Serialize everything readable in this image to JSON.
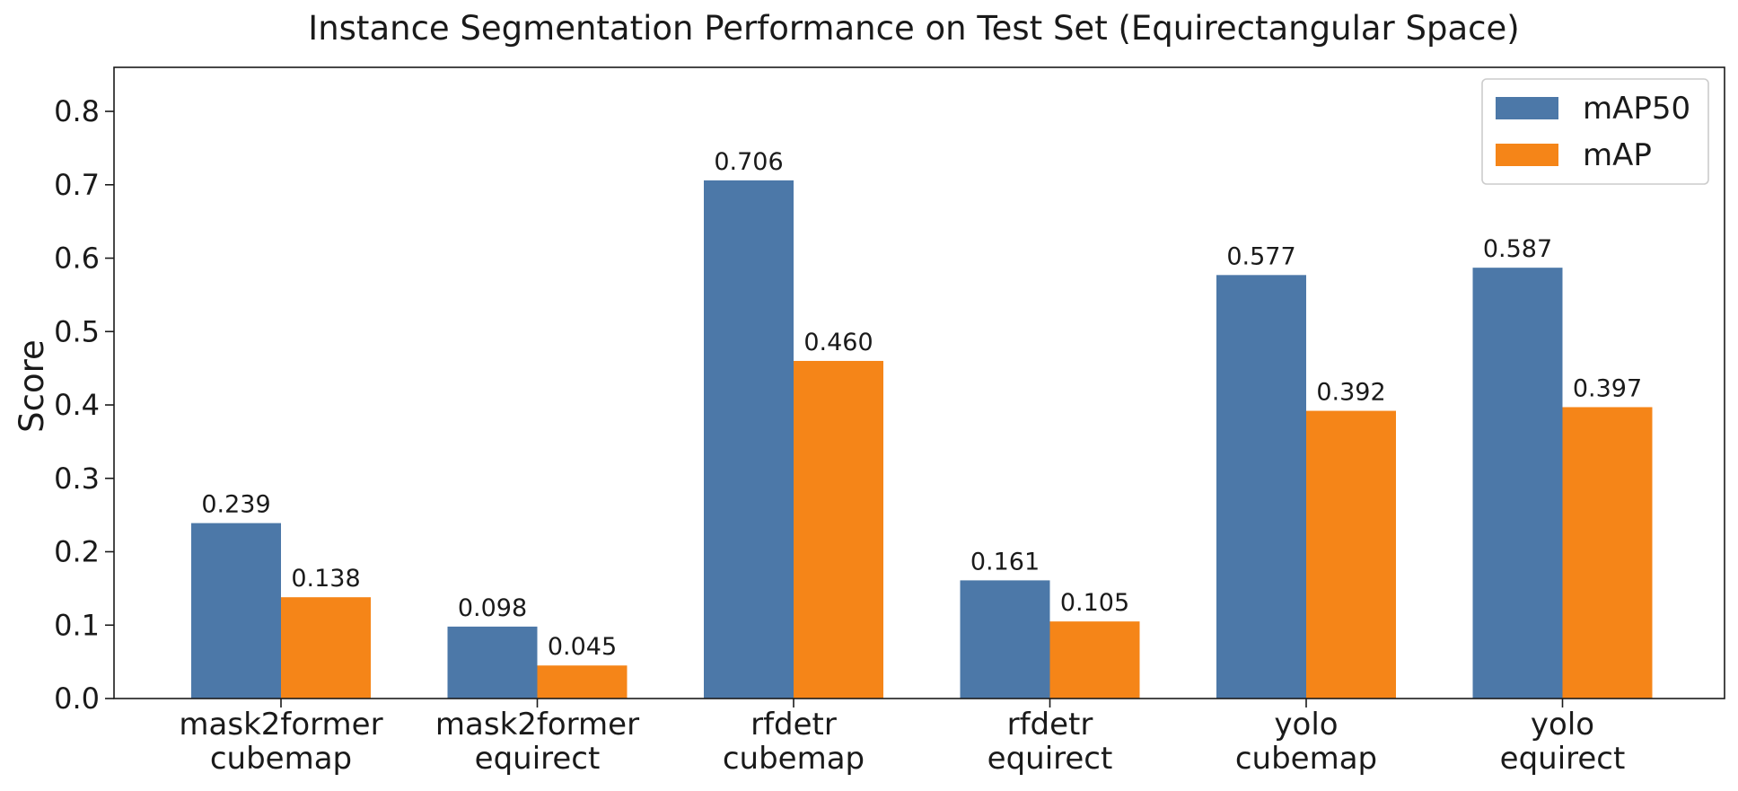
{
  "chart_data": {
    "type": "bar",
    "title": "Instance Segmentation Performance on Test Set (Equirectangular Space)",
    "xlabel": "",
    "ylabel": "Score",
    "ylim": [
      0,
      0.86
    ],
    "yticks": [
      "0.0",
      "0.1",
      "0.2",
      "0.3",
      "0.4",
      "0.5",
      "0.6",
      "0.7",
      "0.8"
    ],
    "categories": [
      [
        "mask2former",
        "cubemap"
      ],
      [
        "mask2former",
        "equirect"
      ],
      [
        "rfdetr",
        "cubemap"
      ],
      [
        "rfdetr",
        "equirect"
      ],
      [
        "yolo",
        "cubemap"
      ],
      [
        "yolo",
        "equirect"
      ]
    ],
    "series": [
      {
        "name": "mAP50",
        "color": "#4c78a8",
        "values": [
          0.239,
          0.098,
          0.706,
          0.161,
          0.577,
          0.587
        ],
        "labels": [
          "0.239",
          "0.098",
          "0.706",
          "0.161",
          "0.577",
          "0.587"
        ]
      },
      {
        "name": "mAP",
        "color": "#f58518",
        "values": [
          0.138,
          0.045,
          0.46,
          0.105,
          0.392,
          0.397
        ],
        "labels": [
          "0.138",
          "0.045",
          "0.460",
          "0.105",
          "0.392",
          "0.397"
        ]
      }
    ],
    "legend": "top-right",
    "grid": false
  }
}
